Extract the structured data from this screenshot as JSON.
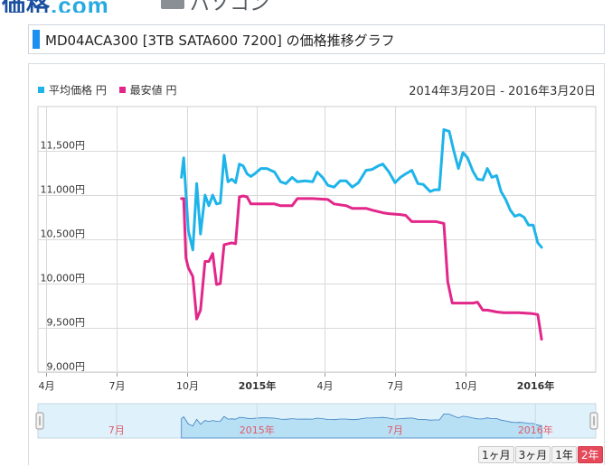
{
  "header": {
    "logo_main": "価格",
    "logo_dot": ".com",
    "category": "パソコン"
  },
  "title": "MD04ACA300 [3TB SATA600 7200] の価格推移グラフ",
  "legend": {
    "avg": "平均価格 円",
    "min": "最安値 円"
  },
  "date_range": "2014年3月20日 - 2016年3月20日",
  "colors": {
    "avg": "#1eb4ea",
    "min": "#e3268a",
    "navigator_fill": "#b8e0f5",
    "navigator_mask": "#dff1fa",
    "grid": "#d9d9d9",
    "accent": "#1c8ff0"
  },
  "period_buttons": [
    {
      "label": "1ヶ月",
      "active": false
    },
    {
      "label": "3ヶ月",
      "active": false
    },
    {
      "label": "1年",
      "active": false
    },
    {
      "label": "2年",
      "active": true
    }
  ],
  "chart_data": {
    "type": "line",
    "x_labels": [
      "4月",
      "7月",
      "10月",
      "2015年",
      "4月",
      "7月",
      "10月",
      "2016年"
    ],
    "y_ticks": [
      9000,
      9500,
      10000,
      10500,
      11000,
      11500
    ],
    "y_tick_labels": [
      "9,000円",
      "9,500円",
      "10,000円",
      "10,500円",
      "11,000円",
      "11,500円"
    ],
    "ylim": [
      9000,
      12000
    ],
    "x_range_days": [
      0,
      731
    ],
    "navigator_labels": [
      {
        "day": 103,
        "label": "7月"
      },
      {
        "day": 287,
        "label": "2015年"
      },
      {
        "day": 468,
        "label": "7月"
      },
      {
        "day": 652,
        "label": "2016年"
      }
    ],
    "series": [
      {
        "name": "平均価格",
        "color": "#1eb4ea",
        "points": [
          [
            188,
            11200
          ],
          [
            191,
            11420
          ],
          [
            197,
            10600
          ],
          [
            203,
            10380
          ],
          [
            208,
            11130
          ],
          [
            213,
            10560
          ],
          [
            219,
            11000
          ],
          [
            224,
            10880
          ],
          [
            229,
            11000
          ],
          [
            234,
            10900
          ],
          [
            239,
            10910
          ],
          [
            244,
            11450
          ],
          [
            249,
            11150
          ],
          [
            254,
            11180
          ],
          [
            259,
            11140
          ],
          [
            264,
            11350
          ],
          [
            269,
            11330
          ],
          [
            274,
            11240
          ],
          [
            279,
            11210
          ],
          [
            284,
            11240
          ],
          [
            292,
            11300
          ],
          [
            300,
            11300
          ],
          [
            310,
            11260
          ],
          [
            318,
            11150
          ],
          [
            325,
            11130
          ],
          [
            333,
            11200
          ],
          [
            340,
            11150
          ],
          [
            350,
            11160
          ],
          [
            360,
            11150
          ],
          [
            366,
            11260
          ],
          [
            373,
            11200
          ],
          [
            380,
            11110
          ],
          [
            388,
            11090
          ],
          [
            396,
            11160
          ],
          [
            404,
            11160
          ],
          [
            412,
            11090
          ],
          [
            420,
            11140
          ],
          [
            430,
            11280
          ],
          [
            438,
            11290
          ],
          [
            446,
            11330
          ],
          [
            452,
            11350
          ],
          [
            460,
            11260
          ],
          [
            468,
            11140
          ],
          [
            475,
            11200
          ],
          [
            482,
            11240
          ],
          [
            490,
            11280
          ],
          [
            498,
            11130
          ],
          [
            505,
            11120
          ],
          [
            514,
            11040
          ],
          [
            520,
            11060
          ],
          [
            526,
            11060
          ],
          [
            532,
            11740
          ],
          [
            539,
            11720
          ],
          [
            545,
            11500
          ],
          [
            551,
            11300
          ],
          [
            557,
            11480
          ],
          [
            563,
            11420
          ],
          [
            570,
            11270
          ],
          [
            576,
            11180
          ],
          [
            583,
            11170
          ],
          [
            589,
            11300
          ],
          [
            595,
            11200
          ],
          [
            601,
            11220
          ],
          [
            607,
            11040
          ],
          [
            613,
            10950
          ],
          [
            619,
            10830
          ],
          [
            625,
            10760
          ],
          [
            631,
            10780
          ],
          [
            637,
            10750
          ],
          [
            643,
            10660
          ],
          [
            649,
            10660
          ],
          [
            655,
            10460
          ],
          [
            660,
            10410
          ]
        ]
      },
      {
        "name": "最安値",
        "color": "#e3268a",
        "points": [
          [
            188,
            10960
          ],
          [
            191,
            10960
          ],
          [
            194,
            10290
          ],
          [
            197,
            10180
          ],
          [
            203,
            10080
          ],
          [
            208,
            9600
          ],
          [
            213,
            9700
          ],
          [
            219,
            10250
          ],
          [
            224,
            10250
          ],
          [
            229,
            10340
          ],
          [
            234,
            9990
          ],
          [
            239,
            10000
          ],
          [
            244,
            10440
          ],
          [
            249,
            10450
          ],
          [
            254,
            10460
          ],
          [
            259,
            10450
          ],
          [
            264,
            10980
          ],
          [
            269,
            10990
          ],
          [
            274,
            10980
          ],
          [
            279,
            10900
          ],
          [
            292,
            10900
          ],
          [
            310,
            10900
          ],
          [
            318,
            10880
          ],
          [
            333,
            10880
          ],
          [
            340,
            10960
          ],
          [
            360,
            10960
          ],
          [
            380,
            10950
          ],
          [
            388,
            10900
          ],
          [
            404,
            10880
          ],
          [
            412,
            10850
          ],
          [
            430,
            10850
          ],
          [
            438,
            10830
          ],
          [
            452,
            10800
          ],
          [
            460,
            10790
          ],
          [
            475,
            10780
          ],
          [
            482,
            10770
          ],
          [
            490,
            10700
          ],
          [
            510,
            10700
          ],
          [
            522,
            10700
          ],
          [
            532,
            10680
          ],
          [
            537,
            10020
          ],
          [
            543,
            9780
          ],
          [
            549,
            9780
          ],
          [
            563,
            9780
          ],
          [
            570,
            9780
          ],
          [
            576,
            9790
          ],
          [
            583,
            9700
          ],
          [
            589,
            9700
          ],
          [
            595,
            9690
          ],
          [
            601,
            9680
          ],
          [
            610,
            9670
          ],
          [
            630,
            9670
          ],
          [
            648,
            9660
          ],
          [
            655,
            9650
          ],
          [
            660,
            9370
          ]
        ]
      }
    ]
  }
}
